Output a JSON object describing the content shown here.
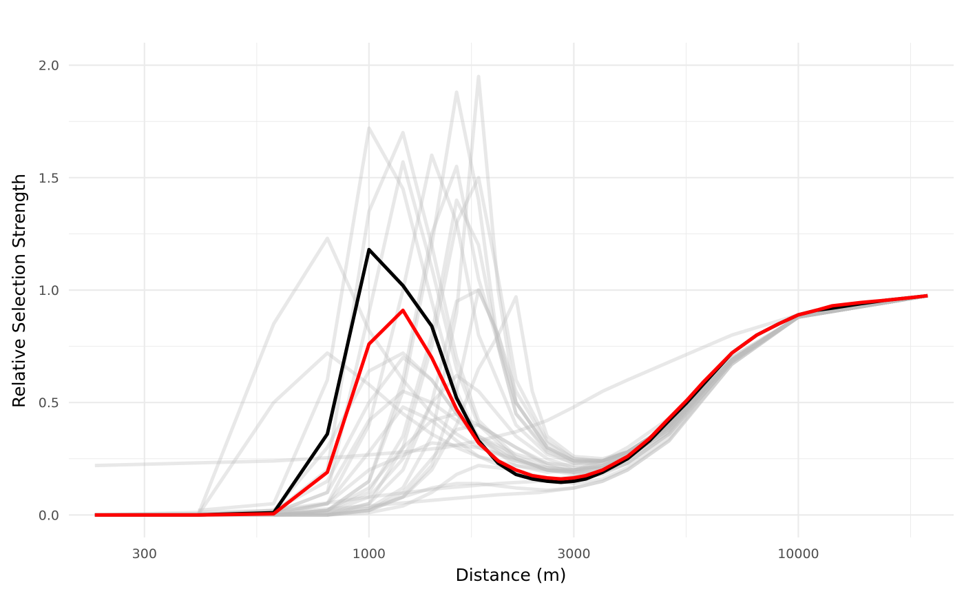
{
  "chart_data": {
    "type": "line",
    "title": "",
    "xlabel": "Distance (m)",
    "ylabel": "Relative Selection Strength",
    "x_scale": "log10",
    "xlim": [
      200,
      23000
    ],
    "ylim": [
      -0.1,
      2.1
    ],
    "x_ticks": [
      300,
      1000,
      3000,
      10000
    ],
    "x_tick_labels": [
      "300",
      "1000",
      "3000",
      "10000"
    ],
    "y_ticks": [
      0,
      0.5,
      1,
      1.5,
      2
    ],
    "y_tick_labels": [
      "0.0",
      "0.5",
      "1.0",
      "1.5",
      "2.0"
    ],
    "grid": true,
    "legend": "none",
    "colors": {
      "replicates": "#bdbdbd",
      "mean": "#000000",
      "median": "#ff0000",
      "grid": "#ebebeb"
    },
    "x": [
      230,
      400,
      600,
      800,
      1000,
      1200,
      1400,
      1600,
      1800,
      2000,
      2200,
      2400,
      2600,
      2800,
      3000,
      3200,
      3500,
      4000,
      4500,
      5000,
      5500,
      6000,
      7000,
      8000,
      9000,
      10000,
      11000,
      12000,
      14000,
      16000,
      18000,
      20000
    ],
    "series": [
      {
        "values": [
          0,
          0,
          0.01,
          0.36,
          1.18,
          1.02,
          0.84,
          0.52,
          0.33,
          0.23,
          0.18,
          0.16,
          0.15,
          0.145,
          0.15,
          0.16,
          0.19,
          0.25,
          0.33,
          0.42,
          0.5,
          0.58,
          0.72,
          0.8,
          0.85,
          0.89,
          0.91,
          0.92,
          0.94,
          0.955,
          0.965,
          0.975
        ],
        "color": "#000000",
        "width": 5
      },
      {
        "values": [
          0,
          0,
          0.005,
          0.19,
          0.76,
          0.91,
          0.7,
          0.47,
          0.32,
          0.24,
          0.2,
          0.175,
          0.165,
          0.16,
          0.165,
          0.175,
          0.2,
          0.26,
          0.34,
          0.43,
          0.51,
          0.59,
          0.72,
          0.8,
          0.85,
          0.89,
          0.91,
          0.93,
          0.945,
          0.955,
          0.965,
          0.975
        ],
        "color": "#ff0000",
        "width": 5
      }
    ],
    "replicates": [
      {
        "x": [
          230,
          600,
          900,
          1200,
          1500,
          1800,
          2200,
          2600,
          3000,
          3500,
          4000,
          5000,
          7000,
          10000,
          20000
        ],
        "values": [
          0.22,
          0.24,
          0.26,
          0.28,
          0.3,
          0.33,
          0.37,
          0.42,
          0.48,
          0.55,
          0.6,
          0.68,
          0.8,
          0.89,
          0.975
        ]
      },
      {
        "x": [
          400,
          600,
          800,
          1000,
          1200,
          1400,
          1600,
          1800,
          2200,
          2600,
          3000,
          3500,
          4000,
          5000,
          7000,
          10000,
          20000
        ],
        "values": [
          0.02,
          0.05,
          0.6,
          1.72,
          1.45,
          0.95,
          0.55,
          0.34,
          0.22,
          0.19,
          0.2,
          0.24,
          0.3,
          0.43,
          0.7,
          0.88,
          0.975
        ]
      },
      {
        "x": [
          400,
          600,
          800,
          1000,
          1200,
          1400,
          1600,
          1800,
          2200,
          2600,
          3000,
          3500,
          4000,
          5000,
          7000,
          10000,
          20000
        ],
        "values": [
          0.0,
          0.01,
          0.2,
          1.35,
          1.7,
          1.2,
          0.7,
          0.42,
          0.26,
          0.21,
          0.2,
          0.23,
          0.28,
          0.4,
          0.7,
          0.88,
          0.975
        ]
      },
      {
        "x": [
          400,
          600,
          800,
          1000,
          1200,
          1400,
          1600,
          1800,
          2200,
          2600,
          3000,
          3500,
          4000,
          5000,
          7000,
          10000,
          20000
        ],
        "values": [
          0.0,
          0.01,
          0.1,
          0.9,
          1.57,
          1.1,
          0.65,
          0.4,
          0.25,
          0.2,
          0.19,
          0.22,
          0.27,
          0.39,
          0.69,
          0.88,
          0.975
        ]
      },
      {
        "x": [
          230,
          400,
          600,
          800,
          1000,
          1200,
          1400,
          1600,
          1800,
          2200,
          2600,
          3000,
          3500,
          4000,
          5000,
          7000,
          10000,
          20000
        ],
        "values": [
          0.0,
          0.0,
          0.85,
          1.23,
          0.82,
          0.6,
          0.45,
          0.36,
          0.3,
          0.24,
          0.21,
          0.2,
          0.22,
          0.27,
          0.39,
          0.69,
          0.88,
          0.975
        ]
      },
      {
        "x": [
          400,
          600,
          800,
          1000,
          1200,
          1400,
          1600,
          1800,
          2200,
          2600,
          3000,
          3500,
          4000,
          5000,
          7000,
          10000,
          20000
        ],
        "values": [
          0.0,
          0.01,
          0.05,
          0.4,
          1.0,
          1.6,
          1.3,
          0.8,
          0.4,
          0.27,
          0.23,
          0.24,
          0.28,
          0.4,
          0.69,
          0.88,
          0.975
        ]
      },
      {
        "x": [
          400,
          600,
          800,
          1000,
          1200,
          1400,
          1600,
          1800,
          2200,
          2600,
          3000,
          3500,
          4000,
          5000,
          7000,
          10000,
          20000
        ],
        "values": [
          0.0,
          0.0,
          0.02,
          0.15,
          0.6,
          1.25,
          1.55,
          1.05,
          0.5,
          0.3,
          0.24,
          0.24,
          0.28,
          0.4,
          0.69,
          0.88,
          0.975
        ]
      },
      {
        "x": [
          600,
          800,
          1000,
          1200,
          1400,
          1600,
          1800,
          2000,
          2200,
          2600,
          3000,
          3500,
          4000,
          5000,
          7000,
          10000,
          20000
        ],
        "values": [
          0.0,
          0.02,
          0.1,
          0.35,
          0.8,
          1.4,
          1.2,
          0.75,
          0.45,
          0.28,
          0.23,
          0.23,
          0.27,
          0.39,
          0.69,
          0.88,
          0.975
        ]
      },
      {
        "x": [
          600,
          800,
          1000,
          1200,
          1400,
          1600,
          1800,
          2000,
          2200,
          2600,
          3000,
          3500,
          4000,
          5000,
          7000,
          10000,
          20000
        ],
        "values": [
          0.0,
          0.0,
          0.05,
          0.2,
          0.5,
          0.95,
          1.0,
          0.8,
          0.55,
          0.32,
          0.25,
          0.24,
          0.28,
          0.4,
          0.69,
          0.88,
          0.975
        ]
      },
      {
        "x": [
          230,
          400,
          600,
          800,
          1000,
          1200,
          1400,
          1600,
          1800,
          2200,
          2600,
          3000,
          3500,
          4000,
          5000,
          7000,
          10000,
          20000
        ],
        "values": [
          0.0,
          0.0,
          0.02,
          0.3,
          0.64,
          0.72,
          0.6,
          0.45,
          0.34,
          0.24,
          0.2,
          0.19,
          0.21,
          0.26,
          0.38,
          0.69,
          0.88,
          0.975
        ]
      },
      {
        "x": [
          400,
          600,
          800,
          1000,
          1200,
          1400,
          1600,
          1800,
          2200,
          2600,
          3000,
          3500,
          4000,
          5000,
          7000,
          10000,
          20000
        ],
        "values": [
          0.0,
          0.5,
          0.72,
          0.58,
          0.45,
          0.36,
          0.3,
          0.26,
          0.22,
          0.2,
          0.2,
          0.22,
          0.27,
          0.39,
          0.69,
          0.88,
          0.975
        ]
      },
      {
        "x": [
          400,
          600,
          800,
          1000,
          1200,
          1400,
          1600,
          1800,
          2200,
          2600,
          3000,
          3500,
          4000,
          5000,
          7000,
          10000,
          20000
        ],
        "values": [
          0.0,
          0.0,
          0.05,
          0.28,
          0.48,
          0.42,
          0.33,
          0.26,
          0.19,
          0.16,
          0.16,
          0.18,
          0.23,
          0.36,
          0.68,
          0.88,
          0.975
        ]
      },
      {
        "x": [
          600,
          800,
          1000,
          1200,
          1400,
          1600,
          1800,
          2200,
          2600,
          3000,
          3500,
          4000,
          5000,
          7000,
          10000,
          20000
        ],
        "values": [
          0.0,
          0.0,
          0.02,
          0.1,
          0.25,
          0.38,
          0.4,
          0.3,
          0.22,
          0.19,
          0.19,
          0.23,
          0.36,
          0.68,
          0.88,
          0.975
        ]
      },
      {
        "x": [
          400,
          600,
          800,
          1000,
          1200,
          1400,
          1600,
          1800,
          2200,
          2600,
          3000,
          3500,
          4000,
          5000,
          7000,
          10000,
          20000
        ],
        "values": [
          0.0,
          0.0,
          0.0,
          0.03,
          0.08,
          0.12,
          0.14,
          0.14,
          0.12,
          0.11,
          0.12,
          0.15,
          0.2,
          0.33,
          0.67,
          0.88,
          0.975
        ]
      },
      {
        "x": [
          230,
          600,
          1000,
          1500,
          2000,
          2500,
          3000,
          3500,
          4000,
          5000,
          7000,
          10000,
          20000
        ],
        "values": [
          0.0,
          0.01,
          0.04,
          0.07,
          0.09,
          0.1,
          0.12,
          0.15,
          0.2,
          0.33,
          0.67,
          0.88,
          0.975
        ]
      },
      {
        "x": [
          600,
          800,
          1000,
          1200,
          1400,
          1600,
          1800,
          2000,
          2200,
          2600,
          3000,
          3500,
          4000,
          5000,
          7000,
          10000,
          20000
        ],
        "values": [
          0.0,
          0.01,
          0.03,
          0.12,
          0.35,
          0.9,
          1.95,
          1.0,
          0.5,
          0.3,
          0.24,
          0.24,
          0.28,
          0.4,
          0.69,
          0.88,
          0.975
        ]
      },
      {
        "x": [
          600,
          800,
          1000,
          1200,
          1400,
          1600,
          1800,
          2000,
          2200,
          2600,
          3000,
          3500,
          4000,
          5000,
          7000,
          10000,
          20000
        ],
        "values": [
          0.0,
          0.02,
          0.15,
          0.55,
          1.2,
          1.88,
          1.4,
          0.75,
          0.45,
          0.29,
          0.24,
          0.24,
          0.28,
          0.4,
          0.69,
          0.88,
          0.975
        ]
      },
      {
        "x": [
          600,
          800,
          1000,
          1200,
          1400,
          1600,
          1800,
          2000,
          2200,
          2600,
          3000,
          3500,
          4000,
          5000,
          7000,
          10000,
          20000
        ],
        "values": [
          0.0,
          0.01,
          0.05,
          0.3,
          0.75,
          1.3,
          1.5,
          1.05,
          0.6,
          0.33,
          0.25,
          0.24,
          0.28,
          0.4,
          0.69,
          0.88,
          0.975
        ]
      },
      {
        "x": [
          800,
          1000,
          1200,
          1400,
          1600,
          1800,
          2000,
          2200,
          2400,
          2600,
          3000,
          3500,
          4000,
          5000,
          7000,
          10000,
          20000
        ],
        "values": [
          0.0,
          0.02,
          0.08,
          0.2,
          0.4,
          0.65,
          0.8,
          0.97,
          0.55,
          0.35,
          0.26,
          0.25,
          0.28,
          0.4,
          0.69,
          0.88,
          0.975
        ]
      },
      {
        "x": [
          400,
          600,
          800,
          1000,
          1200,
          1400,
          1600,
          1800,
          2200,
          2600,
          3000,
          3500,
          4000,
          5000,
          7000,
          10000,
          20000
        ],
        "values": [
          0.0,
          0.02,
          0.15,
          0.5,
          0.7,
          0.6,
          0.45,
          0.35,
          0.25,
          0.2,
          0.19,
          0.21,
          0.26,
          0.38,
          0.69,
          0.88,
          0.975
        ]
      },
      {
        "x": [
          400,
          600,
          800,
          1000,
          1200,
          1400,
          1600,
          1800,
          2200,
          2600,
          3000,
          3500,
          4000,
          5000,
          7000,
          10000,
          20000
        ],
        "values": [
          0.0,
          0.01,
          0.1,
          0.42,
          0.55,
          0.5,
          0.42,
          0.35,
          0.27,
          0.23,
          0.22,
          0.24,
          0.28,
          0.4,
          0.69,
          0.88,
          0.975
        ]
      },
      {
        "x": [
          600,
          800,
          1000,
          1200,
          1400,
          1600,
          1800,
          2200,
          2600,
          3000,
          3500,
          4000,
          5000,
          7000,
          10000,
          20000
        ],
        "values": [
          0.0,
          0.01,
          0.08,
          0.25,
          0.5,
          0.62,
          0.55,
          0.35,
          0.25,
          0.21,
          0.21,
          0.25,
          0.37,
          0.68,
          0.88,
          0.975
        ]
      },
      {
        "x": [
          230,
          400,
          600,
          800,
          1000,
          1400,
          1800,
          2200,
          2600,
          3000,
          3500,
          4000,
          5000,
          7000,
          10000,
          20000
        ],
        "values": [
          0.0,
          0.0,
          0.01,
          0.05,
          0.2,
          0.32,
          0.3,
          0.25,
          0.2,
          0.18,
          0.19,
          0.23,
          0.36,
          0.68,
          0.88,
          0.975
        ]
      },
      {
        "x": [
          400,
          600,
          800,
          1000,
          1200,
          1400,
          1600,
          1800,
          2200,
          2600,
          3000,
          3500,
          4000,
          5000,
          7000,
          10000,
          20000
        ],
        "values": [
          0.0,
          0.0,
          0.02,
          0.12,
          0.3,
          0.42,
          0.45,
          0.4,
          0.3,
          0.23,
          0.2,
          0.21,
          0.26,
          0.38,
          0.69,
          0.88,
          0.975
        ]
      },
      {
        "x": [
          600,
          800,
          1000,
          1200,
          1400,
          1600,
          1800,
          2200,
          2600,
          3000,
          3500,
          4000,
          5000,
          7000,
          10000,
          20000
        ],
        "values": [
          0.0,
          0.0,
          0.01,
          0.04,
          0.1,
          0.18,
          0.22,
          0.2,
          0.16,
          0.14,
          0.16,
          0.21,
          0.34,
          0.67,
          0.88,
          0.975
        ]
      },
      {
        "x": [
          230,
          600,
          1000,
          1500,
          2000,
          2500,
          3000,
          3500,
          4000,
          5000,
          7000,
          10000,
          20000
        ],
        "values": [
          0.0,
          0.02,
          0.08,
          0.12,
          0.14,
          0.15,
          0.17,
          0.2,
          0.25,
          0.37,
          0.68,
          0.88,
          0.975
        ]
      },
      {
        "x": [
          600,
          800,
          1000,
          1200,
          1400,
          1600,
          1800,
          2000,
          2200,
          2600,
          3000,
          3500,
          4000,
          5000,
          7000,
          10000,
          20000
        ],
        "values": [
          0.0,
          0.0,
          0.02,
          0.08,
          0.22,
          0.55,
          1.0,
          0.8,
          0.5,
          0.3,
          0.24,
          0.24,
          0.28,
          0.4,
          0.69,
          0.88,
          0.975
        ]
      }
    ]
  }
}
